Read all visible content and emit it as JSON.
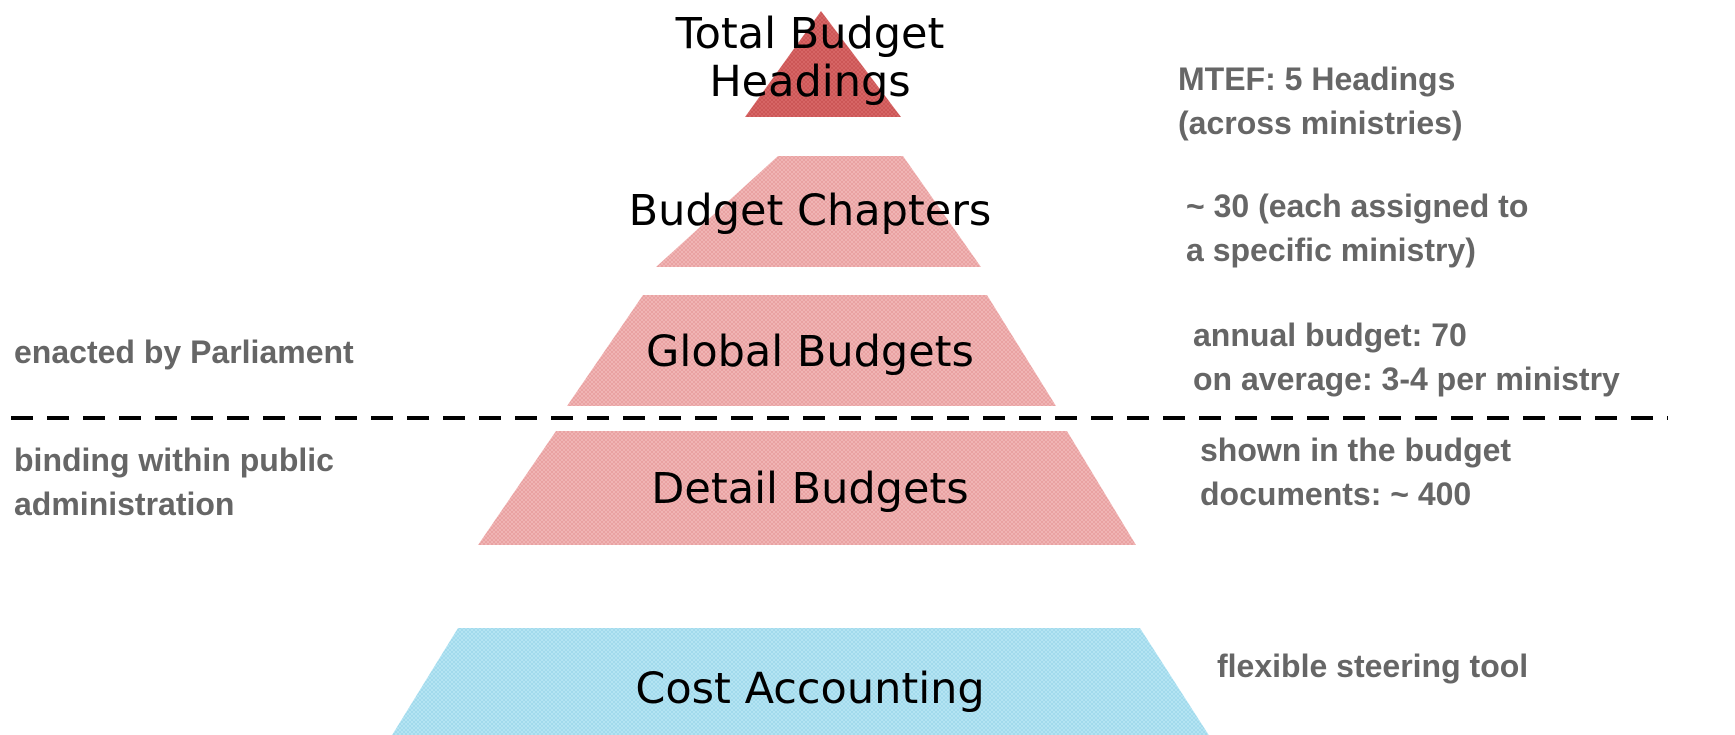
{
  "levels": [
    {
      "label": [
        "Total Budget",
        "Headings"
      ],
      "note": [
        "MTEF: 5 Headings",
        "(across ministries)"
      ]
    },
    {
      "label": [
        "Budget Chapters"
      ],
      "note": [
        "~ 30 (each assigned to",
        "a specific ministry)"
      ]
    },
    {
      "label": [
        "Global Budgets"
      ],
      "note": [
        "annual budget: 70",
        "on average: 3-4 per ministry"
      ]
    },
    {
      "label": [
        "Detail Budgets"
      ],
      "note": [
        "shown in the budget",
        "documents: ~ 400"
      ]
    },
    {
      "label": [
        "Cost Accounting"
      ],
      "note": [
        "flexible steering tool"
      ]
    }
  ],
  "side_notes": {
    "above": [
      "enacted by Parliament"
    ],
    "below": [
      "binding within public",
      "administration"
    ]
  }
}
